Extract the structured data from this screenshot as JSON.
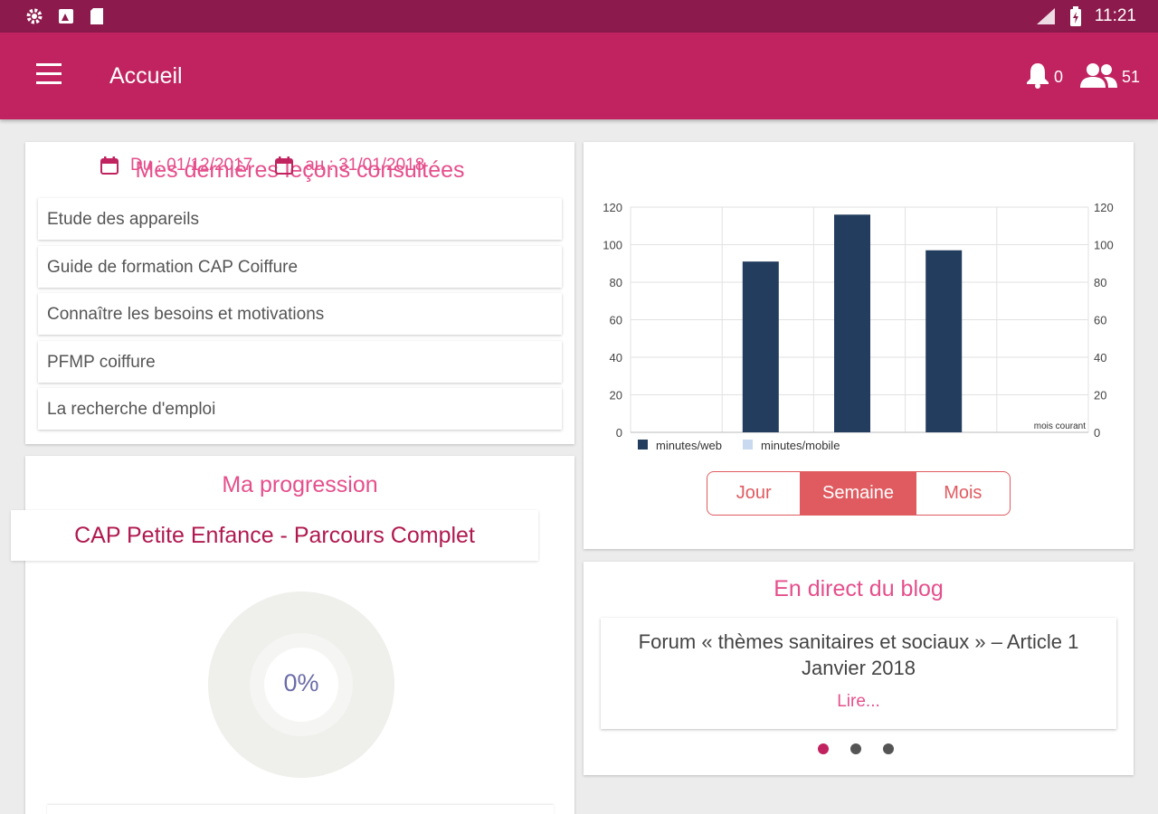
{
  "status_bar": {
    "time": "11:21",
    "left_icons": [
      "gear-icon",
      "image-icon",
      "sd-card-icon"
    ],
    "right_icons": [
      "signal-icon",
      "battery-icon"
    ]
  },
  "app_bar": {
    "title": "Accueil",
    "notifications_count": "0",
    "users_count": "51"
  },
  "lessons": {
    "title": "Mes dernières leçons consultées",
    "items": [
      "Etude des appareils",
      "Guide de formation CAP Coiffure",
      "Connaître les besoins et motivations",
      "PFMP coiffure",
      "La recherche d'emploi"
    ]
  },
  "progress": {
    "title": "Ma progression",
    "course": "CAP Petite Enfance - Parcours Complet",
    "percent_label": "0%",
    "percent": 0
  },
  "stats": {
    "date_from": "Du : 01/12/2017",
    "date_to": "au : 31/01/2018",
    "toggle": {
      "day": "Jour",
      "week": "Semaine",
      "month": "Mois",
      "active": "week"
    }
  },
  "chart_data": {
    "type": "bar",
    "categories": [
      "",
      "",
      "",
      "",
      ""
    ],
    "series": [
      {
        "name": "minutes/web",
        "values": [
          0,
          91,
          116,
          97,
          0
        ],
        "color": "#233d5e"
      },
      {
        "name": "minutes/mobile",
        "values": [
          0,
          0,
          0,
          0,
          0
        ],
        "color": "#c9d9ef"
      }
    ],
    "yticks": [
      "0",
      "20",
      "40",
      "60",
      "80",
      "100",
      "120"
    ],
    "ylim": [
      0,
      120
    ],
    "annotation": "mois courant",
    "legend": "bottom-left",
    "grid": true
  },
  "blog": {
    "title": "En direct du blog",
    "headline": "Forum « thèmes sanitaires et sociaux » – Article 1 Janvier 2018",
    "read_more": "Lire...",
    "active_slide": 0,
    "slides": 3
  },
  "colors": {
    "status_bar": "#8c1a4c",
    "app_bar": "#c0235f",
    "accent_pink": "#e54f8c",
    "toggle_accent": "#e05b60",
    "bar_web": "#233d5e"
  }
}
